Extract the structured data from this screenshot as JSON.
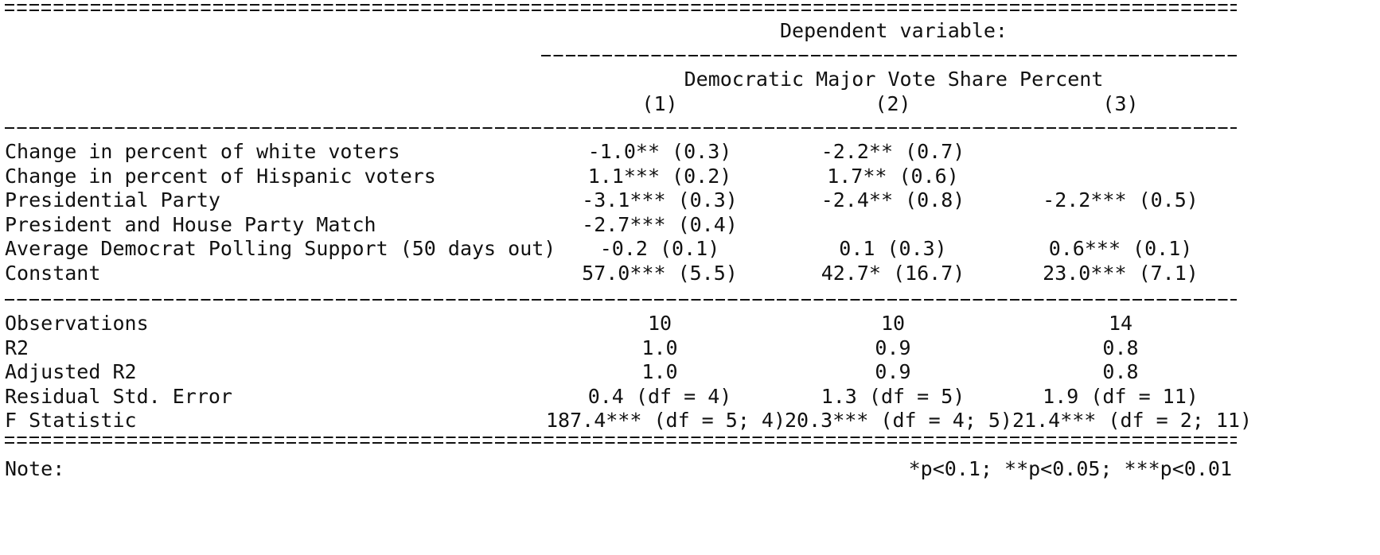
{
  "header": {
    "dependent_variable_label": "Dependent variable:",
    "dependent_variable_name": "Democratic Major Vote Share Percent",
    "columns": [
      "(1)",
      "(2)",
      "(3)"
    ]
  },
  "coefficients": [
    {
      "label": "Change in percent of white voters",
      "values": [
        "-1.0** (0.3)",
        "-2.2** (0.7)",
        ""
      ]
    },
    {
      "label": "Change in percent of Hispanic voters",
      "values": [
        "1.1*** (0.2)",
        "1.7** (0.6)",
        ""
      ]
    },
    {
      "label": "Presidential Party",
      "values": [
        "-3.1*** (0.3)",
        "-2.4** (0.8)",
        "-2.2*** (0.5)"
      ]
    },
    {
      "label": "President and House Party Match",
      "values": [
        "-2.7*** (0.4)",
        "",
        ""
      ]
    },
    {
      "label": "Average Democrat Polling Support (50 days out)",
      "values": [
        "-0.2 (0.1)",
        "0.1 (0.3)",
        "0.6*** (0.1)"
      ]
    },
    {
      "label": "Constant",
      "values": [
        "57.0*** (5.5)",
        "42.7* (16.7)",
        "23.0*** (7.1)"
      ]
    }
  ],
  "statistics": [
    {
      "label": "Observations",
      "values": [
        "10",
        "10",
        "14"
      ]
    },
    {
      "label": "R2",
      "values": [
        "1.0",
        "0.9",
        "0.8"
      ]
    },
    {
      "label": "Adjusted R2",
      "values": [
        "1.0",
        "0.9",
        "0.8"
      ]
    },
    {
      "label": "Residual Std. Error",
      "values": [
        "0.4 (df = 4)",
        "1.3 (df = 5)",
        "1.9 (df = 11)"
      ]
    },
    {
      "label": "F Statistic",
      "values": [
        "187.4*** (df = 5; 4)",
        "20.3*** (df = 4; 5)",
        "21.4*** (df = 2; 11)"
      ]
    }
  ],
  "note": {
    "label": "Note:",
    "text": "*p<0.1; **p<0.05; ***p<0.01"
  }
}
